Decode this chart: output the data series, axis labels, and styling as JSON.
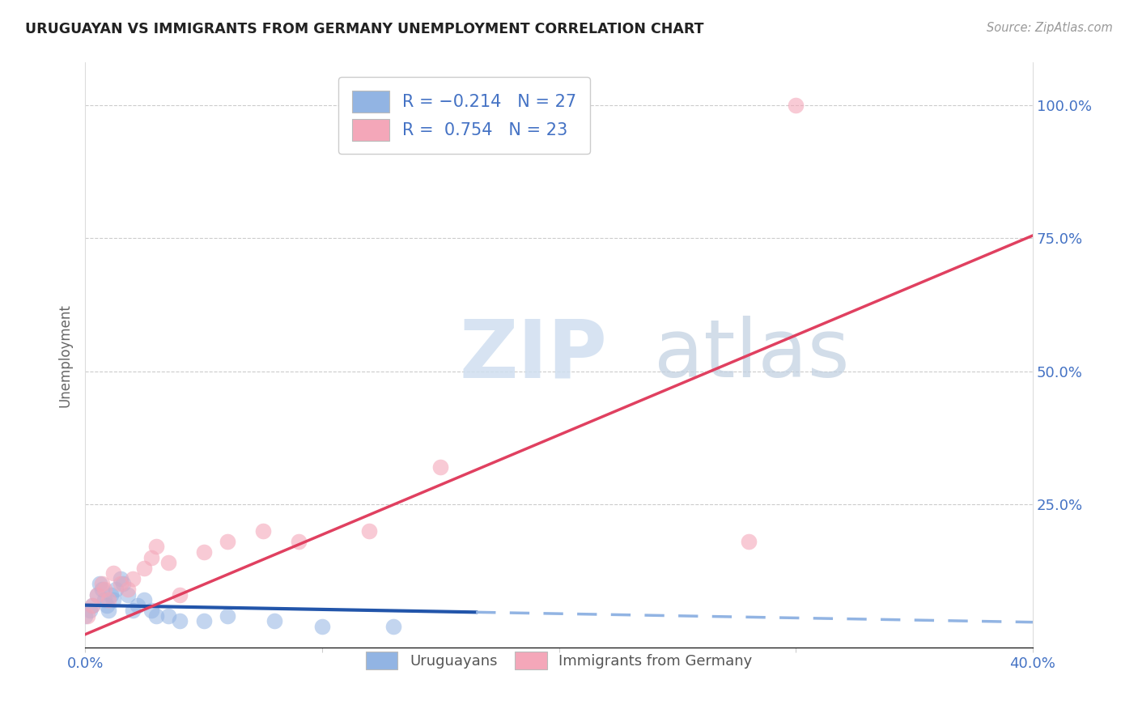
{
  "title": "URUGUAYAN VS IMMIGRANTS FROM GERMANY UNEMPLOYMENT CORRELATION CHART",
  "source": "Source: ZipAtlas.com",
  "ylabel": "Unemployment",
  "xlim": [
    0.0,
    0.4
  ],
  "ylim": [
    -0.02,
    1.08
  ],
  "blue_color": "#92b4e3",
  "pink_color": "#f4a7b9",
  "trend_blue_solid_color": "#2255aa",
  "trend_blue_dashed_color": "#92b4e3",
  "trend_pink_color": "#e04060",
  "uruguayan_x": [
    0.0,
    0.002,
    0.003,
    0.005,
    0.006,
    0.007,
    0.008,
    0.009,
    0.01,
    0.011,
    0.012,
    0.013,
    0.015,
    0.016,
    0.018,
    0.02,
    0.022,
    0.025,
    0.028,
    0.03,
    0.035,
    0.04,
    0.05,
    0.06,
    0.08,
    0.1,
    0.13
  ],
  "uruguayan_y": [
    0.04,
    0.05,
    0.06,
    0.08,
    0.1,
    0.09,
    0.07,
    0.06,
    0.05,
    0.08,
    0.07,
    0.09,
    0.11,
    0.1,
    0.08,
    0.05,
    0.06,
    0.07,
    0.05,
    0.04,
    0.04,
    0.03,
    0.03,
    0.04,
    0.03,
    0.02,
    0.02
  ],
  "germany_x": [
    0.001,
    0.003,
    0.005,
    0.007,
    0.008,
    0.01,
    0.012,
    0.015,
    0.018,
    0.02,
    0.025,
    0.028,
    0.03,
    0.035,
    0.04,
    0.05,
    0.06,
    0.075,
    0.09,
    0.12,
    0.15,
    0.28,
    0.3
  ],
  "germany_y": [
    0.04,
    0.06,
    0.08,
    0.1,
    0.09,
    0.07,
    0.12,
    0.1,
    0.09,
    0.11,
    0.13,
    0.15,
    0.17,
    0.14,
    0.08,
    0.16,
    0.18,
    0.2,
    0.18,
    0.2,
    0.32,
    0.18,
    1.0
  ],
  "trend_blue_slope": -0.08,
  "trend_blue_intercept": 0.06,
  "trend_blue_solid_end": 0.165,
  "trend_pink_slope": 1.875,
  "trend_pink_intercept": 0.005,
  "watermark_zip": "ZIP",
  "watermark_atlas": "atlas"
}
